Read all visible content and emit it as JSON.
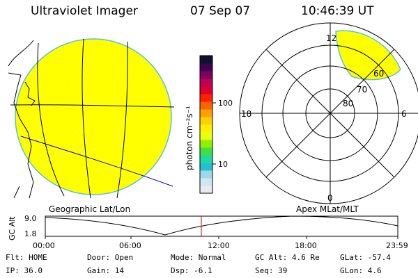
{
  "header": {
    "title": "Ultraviolet Imager",
    "date": "07 Sep 07",
    "time": "10:46:39 UT"
  },
  "left_panel": {
    "caption": "Geographic Lat/Lon"
  },
  "right_panel": {
    "caption": "Apex  MLat/MLT",
    "mlt_labels": {
      "top": "12",
      "bottom": "0",
      "left": "18",
      "right": "6"
    },
    "lat_labels": [
      "80",
      "70",
      "60"
    ]
  },
  "colorbar": {
    "unit_label": "photon cm⁻²s⁻¹",
    "tick_100": "100",
    "tick_10": "10",
    "colors": [
      "#eaeaea",
      "#cfe7f0",
      "#9fd9e8",
      "#22c0d0",
      "#20d8a0",
      "#40e040",
      "#90f000",
      "#e8ff10",
      "#fff000",
      "#ffd000",
      "#ffa000",
      "#ff6000",
      "#ff2000",
      "#e00030",
      "#c00050",
      "#800060",
      "#400050",
      "#101030"
    ]
  },
  "gc_alt_plot": {
    "ylabel": "GC Alt",
    "y_ticks": [
      "9.0",
      "1.8"
    ],
    "x_ticks": [
      "00:00",
      "06:00",
      "12:00",
      "18:00",
      "23:59"
    ]
  },
  "status": {
    "row1": {
      "flt": "Flt: HOME",
      "door": "Door: Open",
      "mode": "Mode: Normal",
      "gcalt": "GC Alt: 4.6 Re",
      "glat": "GLat:  -57.4"
    },
    "row2": {
      "ip": "IP: 36.0",
      "gain": "Gain: 14",
      "dsp": "Dsp:   -6.1",
      "seq": "Seq: 39",
      "glon": "GLon:   4.6"
    }
  },
  "colors": {
    "emission": "#ffff00",
    "grid": "#000000",
    "coast": "#0000cc",
    "marker": "#cc0000",
    "disk_edge": "#55c0e0"
  }
}
